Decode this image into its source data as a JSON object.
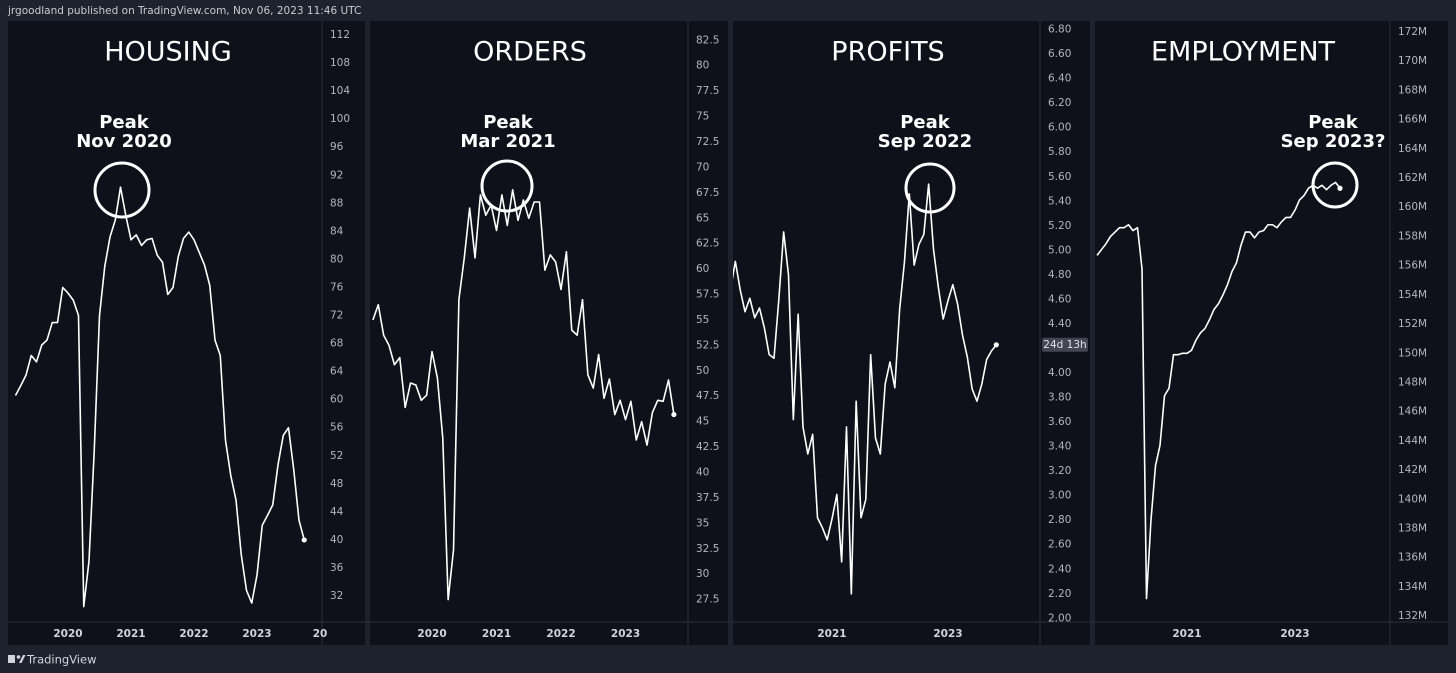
{
  "header": "jrgoodland published on TradingView.com, Nov 06, 2023 11:46 UTC",
  "footer": "TradingView",
  "chart_data": [
    {
      "type": "line",
      "title": "HOUSING",
      "annotation": [
        "Peak",
        "Nov 2020"
      ],
      "color": "#ffffff",
      "categories": [
        null,
        null,
        null,
        null,
        null,
        null,
        null,
        null,
        null,
        null,
        "2020",
        null,
        null,
        null,
        null,
        null,
        null,
        null,
        null,
        null,
        null,
        null,
        "2021",
        null,
        null,
        null,
        null,
        null,
        null,
        null,
        null,
        null,
        null,
        null,
        "2022",
        null,
        null,
        null,
        null,
        null,
        null,
        null,
        null,
        null,
        null,
        null,
        "2023",
        null,
        null,
        null,
        null,
        null,
        null,
        null,
        null,
        null,
        null,
        null,
        "20"
      ],
      "values": [
        60.6,
        62,
        63.5,
        66.3,
        65.4,
        67.8,
        68.5,
        71,
        71,
        76,
        75.2,
        74.2,
        72,
        30.5,
        37,
        52.8,
        72,
        79,
        83.2,
        85.6,
        90.3,
        86.3,
        82.8,
        83.5,
        82,
        82.8,
        83,
        80.6,
        79.6,
        75,
        76,
        80.4,
        83,
        83.9,
        82.8,
        81,
        79.2,
        76.3,
        68.5,
        66.3,
        54.2,
        49.2,
        45.7,
        37.9,
        32.8,
        31,
        35,
        42.1,
        43.5,
        45,
        50.7,
        54.9,
        56,
        50,
        42.8,
        40,
        null,
        null,
        null
      ],
      "ylim": [
        28.3,
        114
      ],
      "yticks": [
        32,
        36,
        40,
        44,
        48,
        52,
        56,
        60,
        64,
        68,
        72,
        76,
        80,
        84,
        88,
        92,
        96,
        100,
        104,
        108,
        112
      ]
    },
    {
      "type": "line",
      "title": "ORDERS",
      "annotation": [
        "Peak",
        "Mar 2021"
      ],
      "color": "#ffffff",
      "categories": [
        null,
        null,
        null,
        null,
        null,
        null,
        null,
        null,
        null,
        null,
        null,
        "2020",
        null,
        null,
        null,
        null,
        null,
        null,
        null,
        null,
        null,
        null,
        null,
        "2021",
        null,
        null,
        null,
        null,
        null,
        null,
        null,
        null,
        null,
        null,
        null,
        "2022",
        null,
        null,
        null,
        null,
        null,
        null,
        null,
        null,
        null,
        null,
        null,
        "2023",
        null,
        null,
        null,
        null,
        null,
        null,
        null,
        null,
        null
      ],
      "values": [
        55,
        56.5,
        53.5,
        52.5,
        50.6,
        51.3,
        46.4,
        48.8,
        48.6,
        47.1,
        47.6,
        51.9,
        49.3,
        43.4,
        27.5,
        32.4,
        57,
        61.1,
        66,
        61.1,
        67.3,
        65.3,
        66.3,
        63.8,
        67.3,
        64.3,
        67.8,
        64.8,
        66.8,
        65,
        66.6,
        66.6,
        59.9,
        61.4,
        60.7,
        58,
        61.7,
        54,
        53.5,
        57,
        49.6,
        48.3,
        51.6,
        47.3,
        49.2,
        45.7,
        47.1,
        45.2,
        47,
        43.2,
        45,
        42.7,
        45.9,
        47.1,
        47,
        49.1,
        45.7
      ],
      "ylim": [
        25.3,
        84.4
      ],
      "yticks": [
        27.5,
        30,
        32.5,
        35,
        37.5,
        40,
        42.5,
        45,
        47.5,
        50,
        52.5,
        55,
        57.5,
        60,
        62.5,
        65,
        67.5,
        70,
        72.5,
        75,
        77.5,
        80,
        82.5
      ]
    },
    {
      "type": "line",
      "title": "PROFITS",
      "annotation": [
        "Peak",
        "Sep 2022"
      ],
      "color": "#ffffff",
      "countdown_label": "24d 13h",
      "categories": [
        null,
        null,
        null,
        null,
        null,
        null,
        null,
        null,
        null,
        null,
        null,
        null,
        null,
        null,
        null,
        null,
        null,
        null,
        null,
        null,
        null,
        "2021",
        null,
        null,
        null,
        null,
        null,
        null,
        null,
        null,
        null,
        null,
        null,
        null,
        null,
        null,
        null,
        null,
        null,
        null,
        null,
        null,
        null,
        null,
        null,
        "2023",
        null,
        null,
        null,
        null,
        null,
        null,
        null,
        null,
        null,
        null
      ],
      "values": [
        4.68,
        4.91,
        4.68,
        4.5,
        4.61,
        4.45,
        4.53,
        4.37,
        4.15,
        4.12,
        4.6,
        5.15,
        4.8,
        3.62,
        4.48,
        3.56,
        3.34,
        3.5,
        2.82,
        2.74,
        2.64,
        2.81,
        3.01,
        2.46,
        3.56,
        2.2,
        3.77,
        2.82,
        2.97,
        4.15,
        3.47,
        3.34,
        3.91,
        4.09,
        3.88,
        4.52,
        4.91,
        5.46,
        4.88,
        5.05,
        5.13,
        5.54,
        5.01,
        4.7,
        4.44,
        4.59,
        4.72,
        4.56,
        4.31,
        4.13,
        3.87,
        3.77,
        3.91,
        4.11,
        4.18,
        4.23
      ],
      "ylim": [
        1.97,
        6.87
      ],
      "yticks": [
        {
          "value": 2,
          "label": "2.00"
        },
        {
          "value": 2.2,
          "label": "2.20"
        },
        {
          "value": 2.4,
          "label": "2.40"
        },
        {
          "value": 2.6,
          "label": "2.60"
        },
        {
          "value": 2.8,
          "label": "2.80"
        },
        {
          "value": 3,
          "label": "3.00"
        },
        {
          "value": 3.2,
          "label": "3.20"
        },
        {
          "value": 3.4,
          "label": "3.40"
        },
        {
          "value": 3.6,
          "label": "3.60"
        },
        {
          "value": 3.8,
          "label": "3.80"
        },
        {
          "value": 4,
          "label": "4.00"
        },
        {
          "value": 4.2,
          "label": "4.20"
        },
        {
          "value": 4.4,
          "label": "4.40"
        },
        {
          "value": 4.6,
          "label": "4.60"
        },
        {
          "value": 4.8,
          "label": "4.80"
        },
        {
          "value": 5,
          "label": "5.00"
        },
        {
          "value": 5.2,
          "label": "5.20"
        },
        {
          "value": 5.4,
          "label": "5.40"
        },
        {
          "value": 5.6,
          "label": "5.60"
        },
        {
          "value": 5.8,
          "label": "5.80"
        },
        {
          "value": 6,
          "label": "6.00"
        },
        {
          "value": 6.2,
          "label": "6.20"
        },
        {
          "value": 6.4,
          "label": "6.40"
        },
        {
          "value": 6.6,
          "label": "6.60"
        },
        {
          "value": 6.8,
          "label": "6.80"
        }
      ]
    },
    {
      "type": "line",
      "title": "EMPLOYMENT",
      "annotation": [
        "Peak",
        "Sep 2023?"
      ],
      "color": "#ffffff",
      "categories": [
        null,
        null,
        null,
        null,
        null,
        null,
        null,
        null,
        null,
        null,
        null,
        null,
        null,
        null,
        null,
        null,
        null,
        null,
        null,
        null,
        "2021",
        null,
        null,
        null,
        null,
        null,
        null,
        null,
        null,
        null,
        null,
        null,
        null,
        null,
        null,
        null,
        null,
        null,
        null,
        null,
        null,
        null,
        null,
        null,
        "2023",
        null,
        null,
        null,
        null,
        null,
        null,
        null,
        null,
        null,
        null
      ],
      "values": [
        156700000,
        157100000,
        157500000,
        158000000,
        158300000,
        158600000,
        158600000,
        158800000,
        158400000,
        158600000,
        155800000,
        133200000,
        138600000,
        142300000,
        143700000,
        147100000,
        147600000,
        149900000,
        149900000,
        150000000,
        150000000,
        150200000,
        150900000,
        151400000,
        151700000,
        152300000,
        153000000,
        153400000,
        154000000,
        154700000,
        155600000,
        156200000,
        157400000,
        158300000,
        158300000,
        157900000,
        158300000,
        158400000,
        158800000,
        158800000,
        158600000,
        159000000,
        159300000,
        159300000,
        159800000,
        160500000,
        160800000,
        161300000,
        161500000,
        161300000,
        161500000,
        161200000,
        161500000,
        161700000,
        161300000
      ],
      "ylim": [
        131600000,
        172750000
      ],
      "yticks": [
        {
          "value": 132000000,
          "label": "132M"
        },
        {
          "value": 134000000,
          "label": "134M"
        },
        {
          "value": 136000000,
          "label": "136M"
        },
        {
          "value": 138000000,
          "label": "138M"
        },
        {
          "value": 140000000,
          "label": "140M"
        },
        {
          "value": 142000000,
          "label": "142M"
        },
        {
          "value": 144000000,
          "label": "144M"
        },
        {
          "value": 146000000,
          "label": "146M"
        },
        {
          "value": 148000000,
          "label": "148M"
        },
        {
          "value": 150000000,
          "label": "150M"
        },
        {
          "value": 152000000,
          "label": "152M"
        },
        {
          "value": 154000000,
          "label": "154M"
        },
        {
          "value": 156000000,
          "label": "156M"
        },
        {
          "value": 158000000,
          "label": "158M"
        },
        {
          "value": 160000000,
          "label": "160M"
        },
        {
          "value": 162000000,
          "label": "162M"
        },
        {
          "value": 164000000,
          "label": "164M"
        },
        {
          "value": 166000000,
          "label": "166M"
        },
        {
          "value": 168000000,
          "label": "168M"
        },
        {
          "value": 170000000,
          "label": "170M"
        },
        {
          "value": 172000000,
          "label": "172M"
        }
      ]
    }
  ]
}
